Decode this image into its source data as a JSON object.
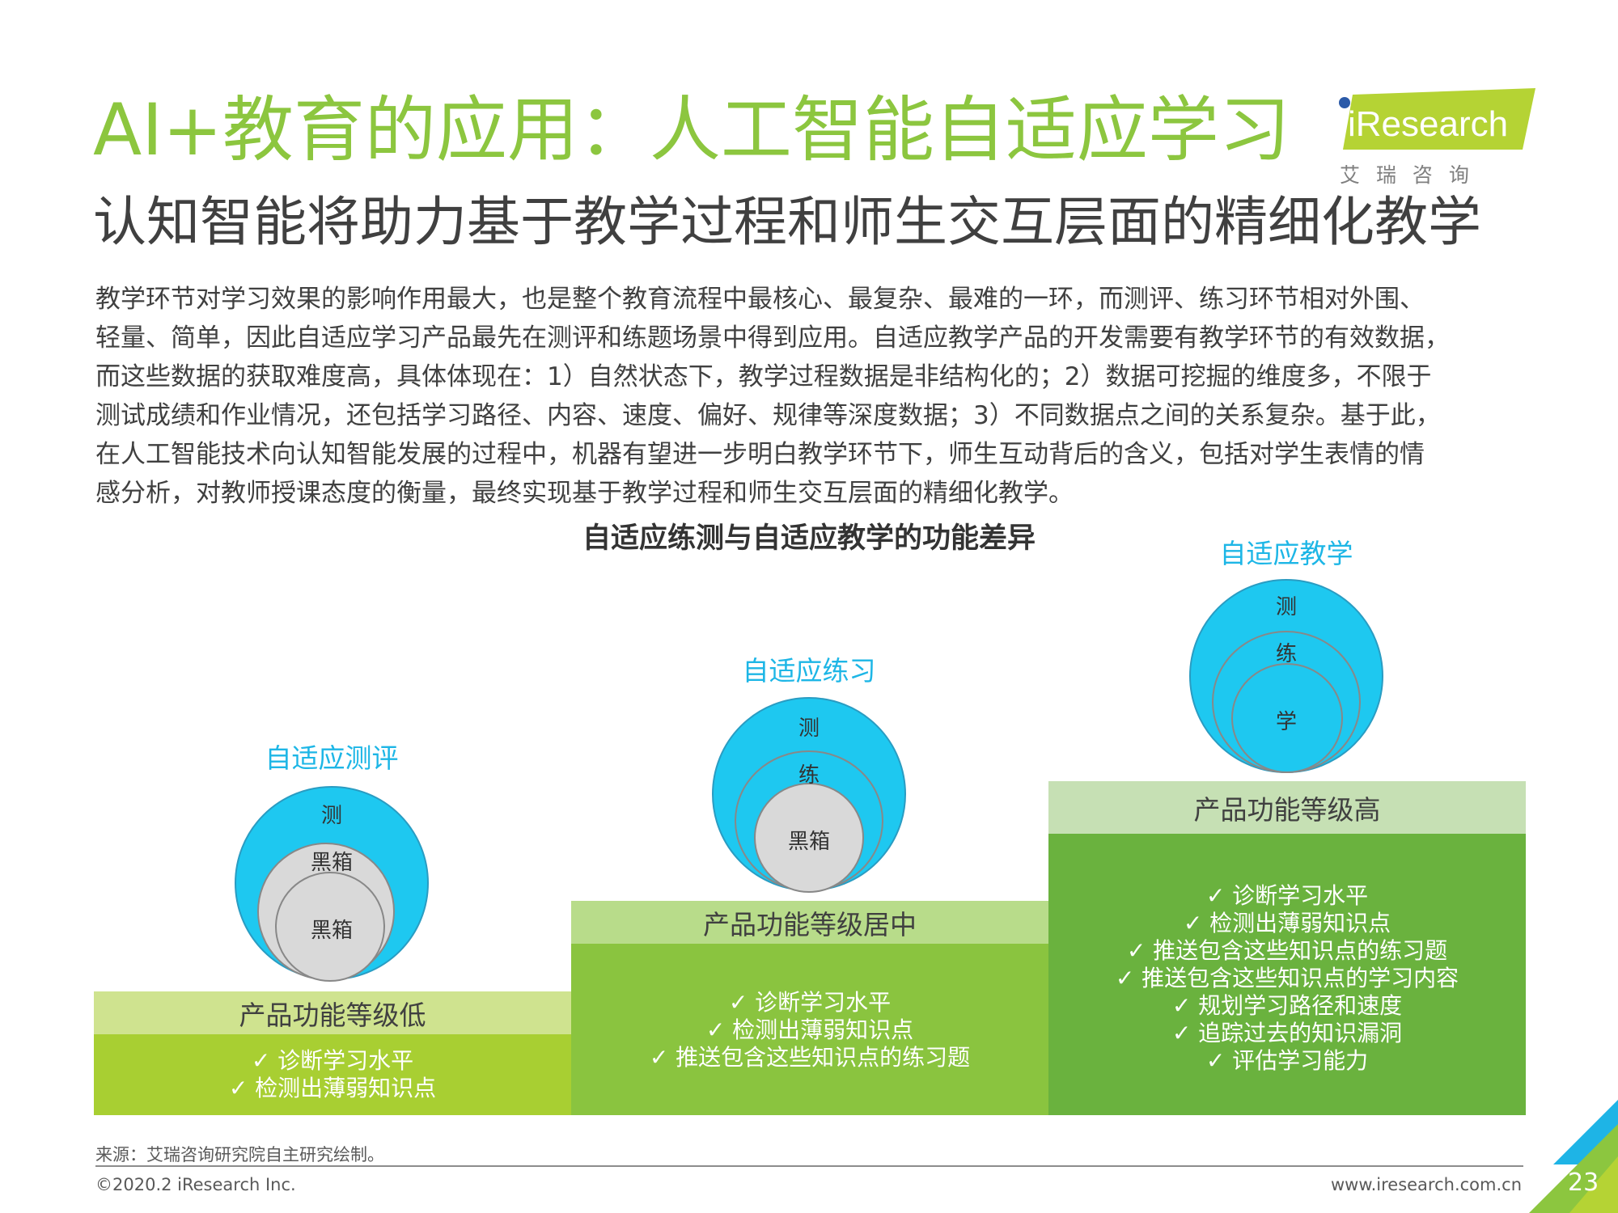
{
  "header": {
    "title": "AI+教育的应用：人工智能自适应学习",
    "subtitle": "认知智能将助力基于教学过程和师生交互层面的精细化教学"
  },
  "logo": {
    "brand": "iResearch",
    "chinese": "艾 瑞 咨 询"
  },
  "body": {
    "lines": [
      "教学环节对学习效果的影响作用最大，也是整个教育流程中最核心、最复杂、最难的一环，而测评、练习环节相对外围、",
      "轻量、简单，因此自适应学习产品最先在测评和练题场景中得到应用。自适应教学产品的开发需要有教学环节的有效数据，",
      "而这些数据的获取难度高，具体体现在：1）自然状态下，教学过程数据是非结构化的；2）数据可挖掘的维度多，不限于",
      "测试成绩和作业情况，还包括学习路径、内容、速度、偏好、规律等深度数据；3）不同数据点之间的关系复杂。基于此，",
      "在人工智能技术向认知智能发展的过程中，机器有望进一步明白教学环节下，师生互动背后的含义，包括对学生表情的情",
      "感分析，对教师授课态度的衡量，最终实现基于教学过程和师生交互层面的精细化教学。"
    ]
  },
  "diagram": {
    "title": "自适应练测与自适应教学的功能差异",
    "stages": [
      {
        "name": "自适应测评",
        "level": "产品功能等级低",
        "circles": [
          "测",
          "黑箱",
          "黑箱"
        ],
        "features": [
          "✓  诊断学习水平",
          "✓  检测出薄弱知识点"
        ]
      },
      {
        "name": "自适应练习",
        "level": "产品功能等级居中",
        "circles": [
          "测",
          "练",
          "黑箱"
        ],
        "features": [
          "✓  诊断学习水平",
          "✓  检测出薄弱知识点",
          "✓  推送包含这些知识点的练习题"
        ]
      },
      {
        "name": "自适应教学",
        "level": "产品功能等级高",
        "circles": [
          "测",
          "练",
          "学"
        ],
        "features": [
          "✓  诊断学习水平",
          "✓  检测出薄弱知识点",
          "✓  推送包含这些知识点的练习题",
          "✓  推送包含这些知识点的学习内容",
          "✓  规划学习路径和速度",
          "✓  追踪过去的知识漏洞",
          "✓  评估学习能力"
        ]
      }
    ]
  },
  "footer": {
    "source": "来源：艾瑞咨询研究院自主研究绘制。",
    "copyright": "©2020.2 iResearch Inc.",
    "website": "www.iresearch.com.cn",
    "page": "23"
  },
  "colors": {
    "title_green": "#8cc63f",
    "cyan": "#1ec8f0",
    "gray_circle": "#d9d9d9",
    "band_low": "#cfe38f",
    "panel_low": "#a8cf32",
    "band_mid": "#b8dc8a",
    "panel_mid": "#8ac43f",
    "band_high": "#c6e0b4",
    "panel_high": "#6ab23e"
  },
  "icons": [
    "checkmark-icon",
    "iresearch-logo",
    "corner-triangle-decoration"
  ]
}
